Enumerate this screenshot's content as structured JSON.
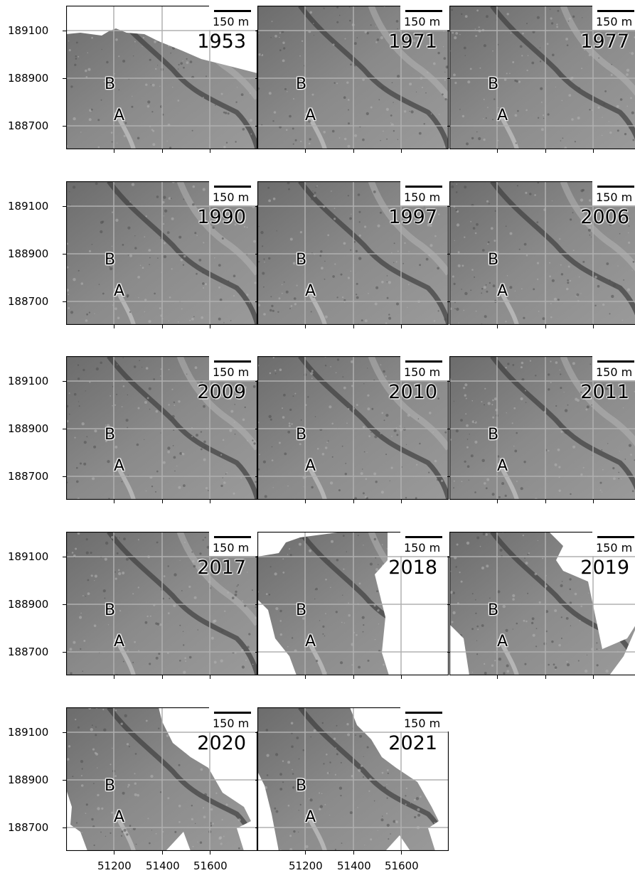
{
  "figure": {
    "scale_text": "150 m",
    "marker_a": "A",
    "marker_b": "B",
    "y_ticks": [
      "189100",
      "188900",
      "188700"
    ],
    "x_ticks": [
      "51200",
      "51400",
      "51600"
    ],
    "colors": {
      "frame": "#000000",
      "grid": "#b0b0b0",
      "hillshade": "#7b7b7b",
      "nodata": "#ffffff"
    },
    "panels": [
      {
        "year": "1953"
      },
      {
        "year": "1971"
      },
      {
        "year": "1977"
      },
      {
        "year": "1990"
      },
      {
        "year": "1997"
      },
      {
        "year": "2006"
      },
      {
        "year": "2009"
      },
      {
        "year": "2010"
      },
      {
        "year": "2011"
      },
      {
        "year": "2017"
      },
      {
        "year": "2018"
      },
      {
        "year": "2019"
      },
      {
        "year": "2020"
      },
      {
        "year": "2021"
      }
    ]
  }
}
